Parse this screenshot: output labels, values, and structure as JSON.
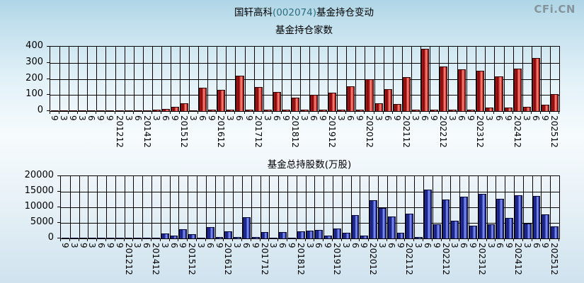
{
  "header": {
    "title_stock": "国轩高科",
    "title_code": "(002074)",
    "title_suffix": "基金持仓变动",
    "logo": "CFi.CN"
  },
  "colors": {
    "accent_code": "#2c6e7e",
    "logo_gray": "#85949d",
    "red_bar": "#c62828",
    "blue_bar": "#3646c4",
    "grid": "#000000"
  },
  "chart_data": [
    {
      "type": "bar",
      "title": "基金持仓家数",
      "bar_color": "red",
      "ylim": [
        0,
        400
      ],
      "yticks": [
        0,
        100,
        200,
        300,
        400
      ],
      "grid": true,
      "categories": [
        "9",
        "3",
        "9",
        "3",
        "6",
        "9",
        "9",
        "201212",
        "3",
        "6",
        "201412",
        "3",
        "6",
        "9",
        "201512",
        "3",
        "6",
        "9",
        "201612",
        "3",
        "6",
        "9",
        "201712",
        "3",
        "6",
        "9",
        "201812",
        "3",
        "6",
        "9",
        "201912",
        "3",
        "6",
        "9",
        "202012",
        "3",
        "6",
        "9",
        "202112",
        "3",
        "6",
        "9",
        "202212",
        "3",
        "6",
        "9",
        "202312",
        "3",
        "6",
        "9",
        "202412",
        "3",
        "6",
        "9",
        "202512"
      ],
      "values": [
        2,
        2,
        2,
        2,
        2,
        2,
        2,
        3,
        2,
        3,
        5,
        10,
        15,
        25,
        50,
        5,
        145,
        8,
        130,
        8,
        220,
        10,
        150,
        8,
        120,
        8,
        85,
        8,
        103,
        8,
        114,
        8,
        154,
        8,
        200,
        50,
        136,
        45,
        210,
        8,
        388,
        8,
        278,
        8,
        260,
        8,
        250,
        20,
        215,
        20,
        265,
        25,
        330,
        40,
        105
      ]
    },
    {
      "type": "bar",
      "title": "基金总持股数(万股)",
      "bar_color": "blue",
      "ylim": [
        0,
        20000
      ],
      "yticks": [
        0,
        5000,
        10000,
        15000,
        20000
      ],
      "grid": true,
      "categories": [
        "9",
        "3",
        "9",
        "3",
        "6",
        "9",
        "9",
        "201212",
        "3",
        "6",
        "201412",
        "3",
        "6",
        "9",
        "201512",
        "3",
        "6",
        "9",
        "201612",
        "3",
        "6",
        "9",
        "201712",
        "3",
        "6",
        "9",
        "201812",
        "3",
        "6",
        "9",
        "201912",
        "3",
        "6",
        "9",
        "202012",
        "3",
        "6",
        "9",
        "202112",
        "3",
        "6",
        "9",
        "202212",
        "3",
        "6",
        "9",
        "202312",
        "3",
        "6",
        "9",
        "202412",
        "3",
        "6",
        "9",
        "202512"
      ],
      "values": [
        30,
        30,
        30,
        30,
        30,
        30,
        30,
        40,
        30,
        40,
        150,
        1500,
        800,
        2900,
        1300,
        300,
        3600,
        500,
        2250,
        550,
        6800,
        550,
        2100,
        300,
        2100,
        300,
        2200,
        2600,
        2700,
        850,
        3200,
        1800,
        7600,
        800,
        12300,
        9700,
        7000,
        1800,
        8000,
        400,
        15600,
        4500,
        12500,
        5700,
        13400,
        4200,
        14300,
        4600,
        12700,
        6600,
        13900,
        4800,
        13600,
        7800,
        3900
      ]
    }
  ]
}
